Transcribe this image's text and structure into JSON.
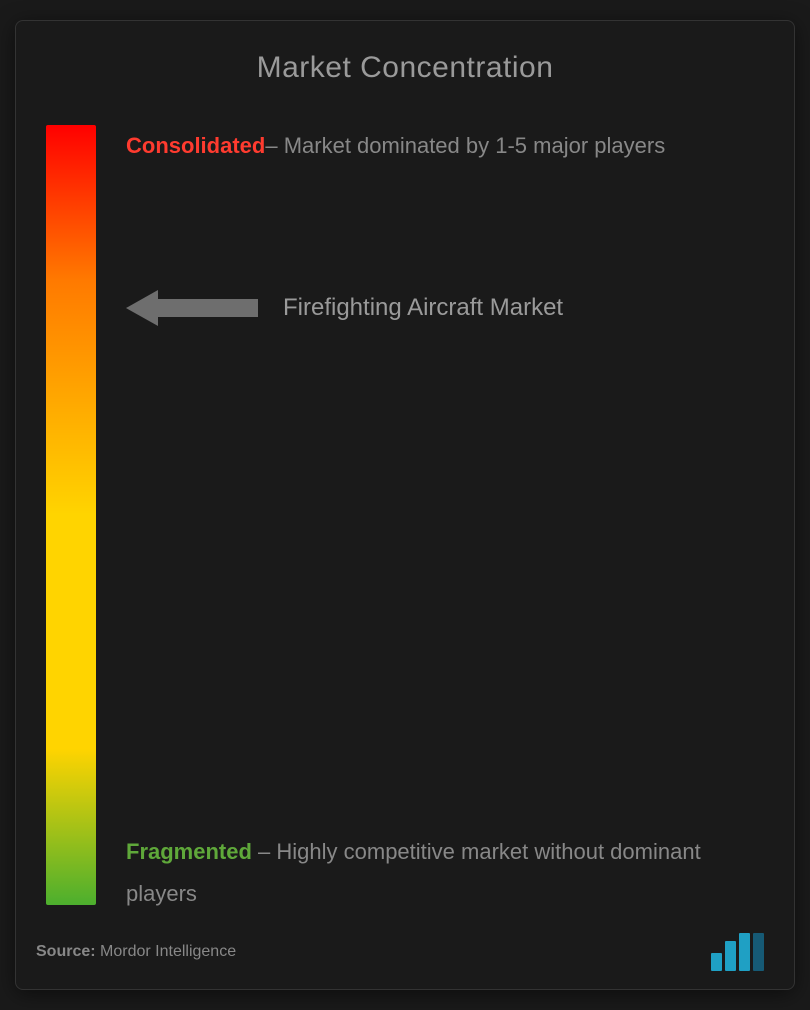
{
  "title": "Market Concentration",
  "gradient": {
    "top_color": "#ff0000",
    "mid_color1": "#ff7a00",
    "mid_color2": "#ffd400",
    "bottom_color": "#4caf2e"
  },
  "top_label": {
    "bold": "Consolidated",
    "bold_color": "#ff3b2f",
    "text": "– Market dominated by 1-5 major players"
  },
  "arrow": {
    "color": "#6e6e6e",
    "position_percent": 21
  },
  "market_name": "Firefighting Aircraft Market",
  "bottom_label": {
    "bold": "Fragmented",
    "bold_color": "#5fa83a",
    "text": " – Highly competitive market without dominant players"
  },
  "footer": {
    "source_label": "Source:",
    "source_value": " Mordor Intelligence"
  },
  "logo": {
    "colors": [
      "#1fa0c4",
      "#1fa0c4",
      "#1fa0c4",
      "#165a75"
    ],
    "heights": [
      18,
      30,
      38,
      38
    ]
  },
  "background_color": "#1a1a1a",
  "text_color": "#888888",
  "title_color": "#9a9a9a"
}
